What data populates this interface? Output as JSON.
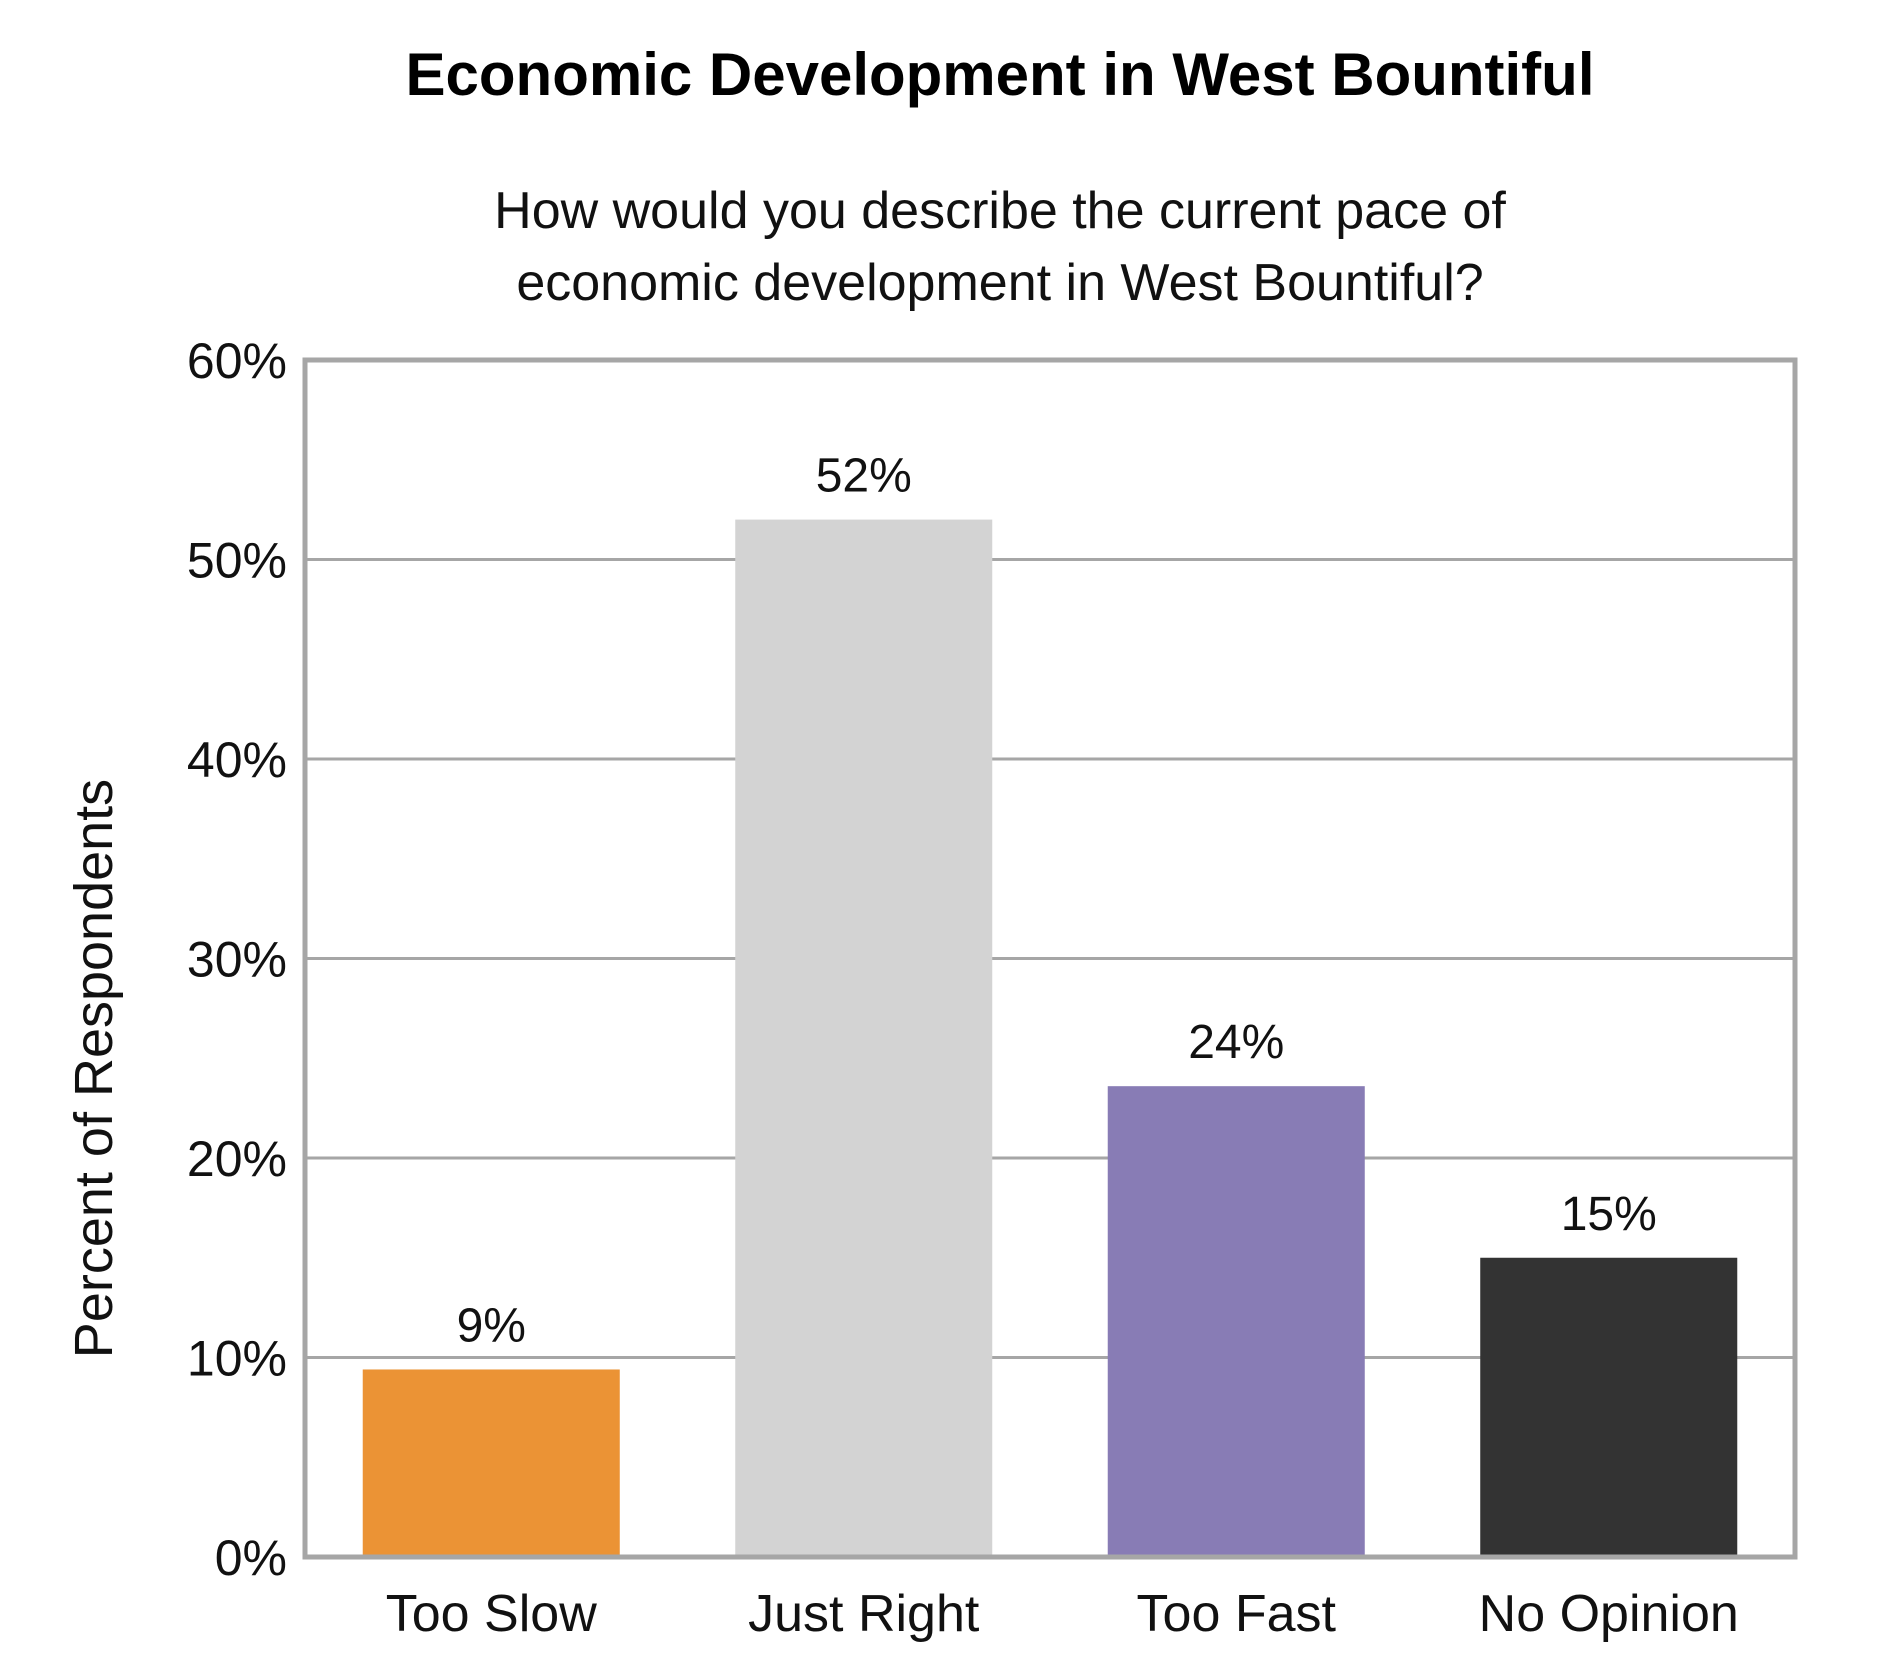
{
  "chart_data": {
    "type": "bar",
    "title": "Economic Development in West Bountiful",
    "subtitle": [
      "How would you describe the current pace of",
      "economic development in West Bountiful?"
    ],
    "ylabel": "Percent of Respondents",
    "xlabel": "",
    "categories": [
      "Too Slow",
      "Just Right",
      "Too Fast",
      "No Opinion"
    ],
    "values": [
      9,
      52,
      24,
      15
    ],
    "bar_values": [
      9.4,
      52.0,
      23.6,
      15.0
    ],
    "data_labels": [
      "9%",
      "52%",
      "24%",
      "15%"
    ],
    "colors": [
      "#EB9335",
      "#D3D3D3",
      "#887CB5",
      "#333333"
    ],
    "ylim": [
      0,
      60
    ],
    "yticks": [
      "0%",
      "10%",
      "20%",
      "30%",
      "40%",
      "50%",
      "60%"
    ],
    "grid": true,
    "legend": "none"
  }
}
